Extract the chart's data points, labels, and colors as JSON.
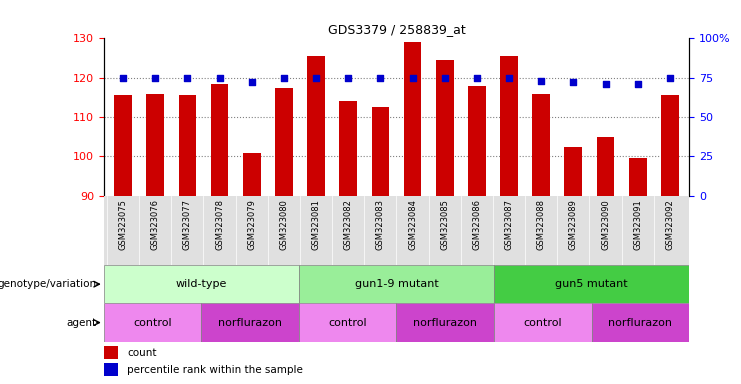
{
  "title": "GDS3379 / 258839_at",
  "samples": [
    "GSM323075",
    "GSM323076",
    "GSM323077",
    "GSM323078",
    "GSM323079",
    "GSM323080",
    "GSM323081",
    "GSM323082",
    "GSM323083",
    "GSM323084",
    "GSM323085",
    "GSM323086",
    "GSM323087",
    "GSM323088",
    "GSM323089",
    "GSM323090",
    "GSM323091",
    "GSM323092"
  ],
  "counts": [
    115.5,
    116.0,
    115.5,
    118.5,
    101.0,
    117.5,
    125.5,
    114.0,
    112.5,
    129.0,
    124.5,
    118.0,
    125.5,
    116.0,
    102.5,
    105.0,
    99.5,
    115.5
  ],
  "percentile_ranks": [
    75,
    75,
    75,
    75,
    72,
    75,
    75,
    75,
    75,
    75,
    75,
    75,
    75,
    73,
    72,
    71,
    71,
    75
  ],
  "bar_color": "#cc0000",
  "dot_color": "#0000cc",
  "ylim_left": [
    90,
    130
  ],
  "ylim_right": [
    0,
    100
  ],
  "yticks_left": [
    90,
    100,
    110,
    120,
    130
  ],
  "yticks_right": [
    0,
    25,
    50,
    75,
    100
  ],
  "ytick_labels_right": [
    "0",
    "25",
    "50",
    "75",
    "100%"
  ],
  "grid_values": [
    100,
    110,
    120
  ],
  "genotype_groups": [
    {
      "label": "wild-type",
      "start": 0,
      "end": 6,
      "color": "#ccffcc"
    },
    {
      "label": "gun1-9 mutant",
      "start": 6,
      "end": 12,
      "color": "#99ee99"
    },
    {
      "label": "gun5 mutant",
      "start": 12,
      "end": 18,
      "color": "#44cc44"
    }
  ],
  "agent_groups": [
    {
      "label": "control",
      "start": 0,
      "end": 3,
      "color": "#ee88ee"
    },
    {
      "label": "norflurazon",
      "start": 3,
      "end": 6,
      "color": "#cc44cc"
    },
    {
      "label": "control",
      "start": 6,
      "end": 9,
      "color": "#ee88ee"
    },
    {
      "label": "norflurazon",
      "start": 9,
      "end": 12,
      "color": "#cc44cc"
    },
    {
      "label": "control",
      "start": 12,
      "end": 15,
      "color": "#ee88ee"
    },
    {
      "label": "norflurazon",
      "start": 15,
      "end": 18,
      "color": "#cc44cc"
    }
  ],
  "legend_count_color": "#cc0000",
  "legend_dot_color": "#0000cc",
  "bar_width": 0.55,
  "chart_bg": "#ffffff",
  "tick_label_bg": "#e0e0e0"
}
